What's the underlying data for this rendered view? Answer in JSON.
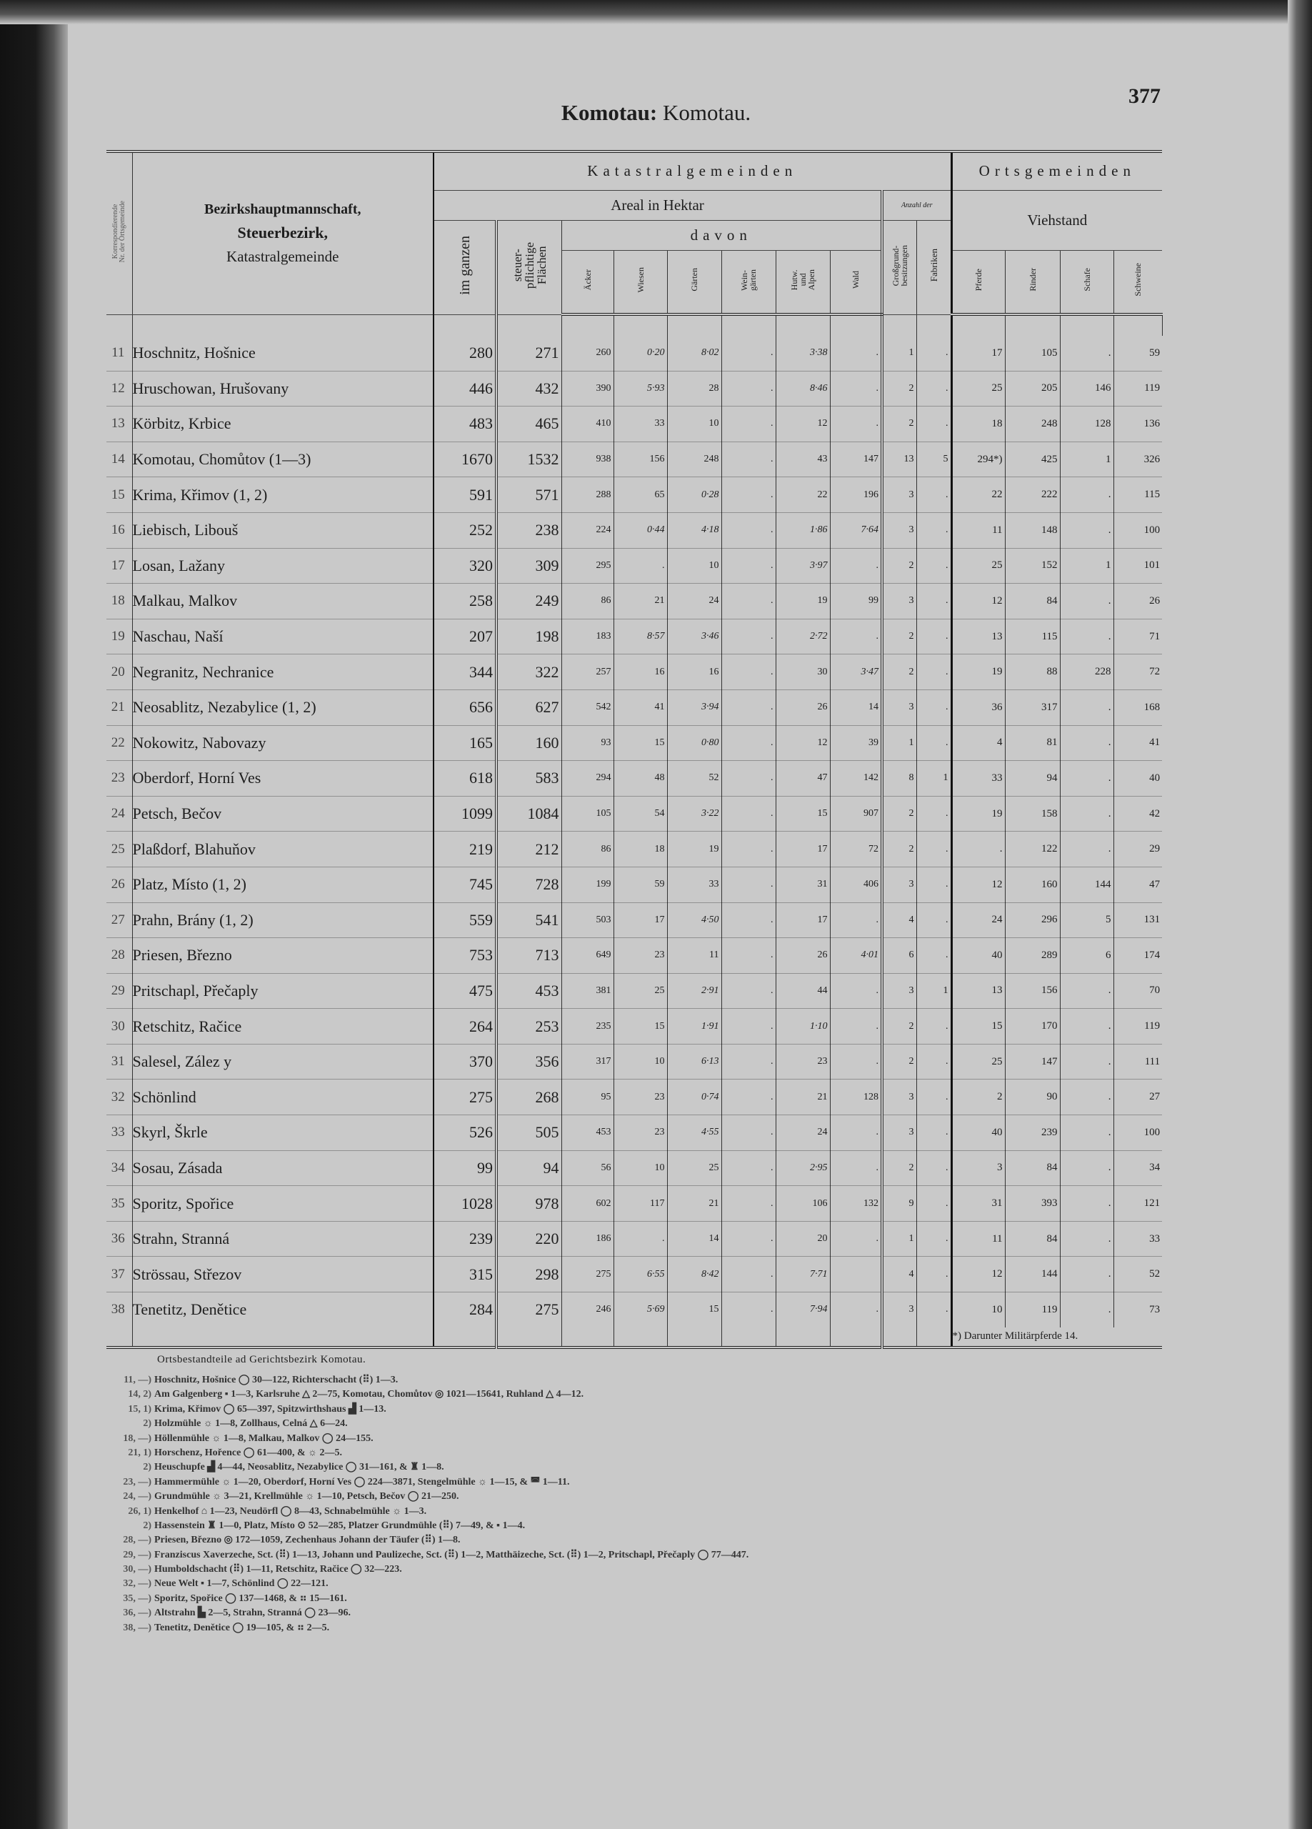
{
  "page": {
    "title_bold": "Komotau:",
    "title_rest": "Komotau.",
    "number": "377"
  },
  "header": {
    "nr": "Korrespondierende\nNr. der Ortsgemeinde",
    "name_line1": "Bezirkshauptmannschaft,",
    "name_line2": "Steuerbezirk,",
    "name_line3": "Katastralgemeinde",
    "katastral": "Katastralgemeinden",
    "orts": "Ortsgemeinden",
    "areal": "Areal in Hektar",
    "anzahl": "Anzahl der",
    "viehstand": "Viehstand",
    "im_ganzen": "im ganzen",
    "steuer": "steuer-\npflichtige\nFlächen",
    "davon": "davon",
    "grossgrund": "Großgrund-\nbesitzungen",
    "fabriken": "Fabriken",
    "cols": [
      "Äcker",
      "Wiesen",
      "Gärten",
      "Wein-\ngärten",
      "Hutw.\nund\nAlpen",
      "Wald"
    ],
    "vieh": [
      "Pferde",
      "Rinder",
      "Schafe",
      "Schweine"
    ]
  },
  "rows": [
    [
      "11",
      "Hoschnitz, Hošnice",
      "280",
      "271",
      "260",
      "0·20",
      "8·02",
      ".",
      "3·38",
      ".",
      "1",
      ".",
      "17",
      "105",
      ".",
      "59"
    ],
    [
      "12",
      "Hruschowan, Hrušovany",
      "446",
      "432",
      "390",
      "5·93",
      "28",
      ".",
      "8·46",
      ".",
      "2",
      ".",
      "25",
      "205",
      "146",
      "119"
    ],
    [
      "13",
      "Körbitz, Krbice",
      "483",
      "465",
      "410",
      "33",
      "10",
      ".",
      "12",
      ".",
      "2",
      ".",
      "18",
      "248",
      "128",
      "136"
    ],
    [
      "14",
      "Komotau, Chomůtov (1—3)",
      "1670",
      "1532",
      "938",
      "156",
      "248",
      ".",
      "43",
      "147",
      "13",
      "5",
      "294*)",
      "425",
      "1",
      "326"
    ],
    [
      "15",
      "Krima, Křimov (1, 2)",
      "591",
      "571",
      "288",
      "65",
      "0·28",
      ".",
      "22",
      "196",
      "3",
      ".",
      "22",
      "222",
      ".",
      "115"
    ],
    [
      "16",
      "Liebisch, Libouš",
      "252",
      "238",
      "224",
      "0·44",
      "4·18",
      ".",
      "1·86",
      "7·64",
      "3",
      ".",
      "11",
      "148",
      ".",
      "100"
    ],
    [
      "17",
      "Losan, Lažany",
      "320",
      "309",
      "295",
      ".",
      "10",
      ".",
      "3·97",
      ".",
      "2",
      ".",
      "25",
      "152",
      "1",
      "101"
    ],
    [
      "18",
      "Malkau, Malkov",
      "258",
      "249",
      "86",
      "21",
      "24",
      ".",
      "19",
      "99",
      "3",
      ".",
      "12",
      "84",
      ".",
      "26"
    ],
    [
      "19",
      "Naschau, Naší",
      "207",
      "198",
      "183",
      "8·57",
      "3·46",
      ".",
      "2·72",
      ".",
      "2",
      ".",
      "13",
      "115",
      ".",
      "71"
    ],
    [
      "20",
      "Negranitz, Nechranice",
      "344",
      "322",
      "257",
      "16",
      "16",
      ".",
      "30",
      "3·47",
      "2",
      ".",
      "19",
      "88",
      "228",
      "72"
    ],
    [
      "21",
      "Neosablitz, Nezabylice (1, 2)",
      "656",
      "627",
      "542",
      "41",
      "3·94",
      ".",
      "26",
      "14",
      "3",
      ".",
      "36",
      "317",
      ".",
      "168"
    ],
    [
      "22",
      "Nokowitz, Nabovazy",
      "165",
      "160",
      "93",
      "15",
      "0·80",
      ".",
      "12",
      "39",
      "1",
      ".",
      "4",
      "81",
      ".",
      "41"
    ],
    [
      "23",
      "Oberdorf, Horní Ves",
      "618",
      "583",
      "294",
      "48",
      "52",
      ".",
      "47",
      "142",
      "8",
      "1",
      "33",
      "94",
      ".",
      "40"
    ],
    [
      "24",
      "Petsch, Bečov",
      "1099",
      "1084",
      "105",
      "54",
      "3·22",
      ".",
      "15",
      "907",
      "2",
      ".",
      "19",
      "158",
      ".",
      "42"
    ],
    [
      "25",
      "Plaßdorf, Blahuňov",
      "219",
      "212",
      "86",
      "18",
      "19",
      ".",
      "17",
      "72",
      "2",
      ".",
      ".",
      "122",
      ".",
      "29"
    ],
    [
      "26",
      "Platz, Místo (1, 2)",
      "745",
      "728",
      "199",
      "59",
      "33",
      ".",
      "31",
      "406",
      "3",
      ".",
      "12",
      "160",
      "144",
      "47"
    ],
    [
      "27",
      "Prahn, Brány (1, 2)",
      "559",
      "541",
      "503",
      "17",
      "4·50",
      ".",
      "17",
      ".",
      "4",
      ".",
      "24",
      "296",
      "5",
      "131"
    ],
    [
      "28",
      "Priesen, Březno",
      "753",
      "713",
      "649",
      "23",
      "11",
      ".",
      "26",
      "4·01",
      "6",
      ".",
      "40",
      "289",
      "6",
      "174"
    ],
    [
      "29",
      "Pritschapl, Přečaply",
      "475",
      "453",
      "381",
      "25",
      "2·91",
      ".",
      "44",
      ".",
      "3",
      "1",
      "13",
      "156",
      ".",
      "70"
    ],
    [
      "30",
      "Retschitz, Račice",
      "264",
      "253",
      "235",
      "15",
      "1·91",
      ".",
      "1·10",
      ".",
      "2",
      ".",
      "15",
      "170",
      ".",
      "119"
    ],
    [
      "31",
      "Salesel, Zález y",
      "370",
      "356",
      "317",
      "10",
      "6·13",
      ".",
      "23",
      ".",
      "2",
      ".",
      "25",
      "147",
      ".",
      "111"
    ],
    [
      "32",
      "Schönlind",
      "275",
      "268",
      "95",
      "23",
      "0·74",
      ".",
      "21",
      "128",
      "3",
      ".",
      "2",
      "90",
      ".",
      "27"
    ],
    [
      "33",
      "Skyrl, Škrle",
      "526",
      "505",
      "453",
      "23",
      "4·55",
      ".",
      "24",
      ".",
      "3",
      ".",
      "40",
      "239",
      ".",
      "100"
    ],
    [
      "34",
      "Sosau, Zásada",
      "99",
      "94",
      "56",
      "10",
      "25",
      ".",
      "2·95",
      ".",
      "2",
      ".",
      "3",
      "84",
      ".",
      "34"
    ],
    [
      "35",
      "Sporitz, Spořice",
      "1028",
      "978",
      "602",
      "117",
      "21",
      ".",
      "106",
      "132",
      "9",
      ".",
      "31",
      "393",
      ".",
      "121"
    ],
    [
      "36",
      "Strahn, Stranná",
      "239",
      "220",
      "186",
      ".",
      "14",
      ".",
      "20",
      ".",
      "1",
      ".",
      "11",
      "84",
      ".",
      "33"
    ],
    [
      "37",
      "Strössau, Střezov",
      "315",
      "298",
      "275",
      "6·55",
      "8·42",
      ".",
      "7·71",
      "",
      "4",
      ".",
      "12",
      "144",
      ".",
      "52"
    ],
    [
      "38",
      "Tenetitz, Denětice",
      "284",
      "275",
      "246",
      "5·69",
      "15",
      ".",
      "7·94",
      ".",
      "3",
      ".",
      "10",
      "119",
      ".",
      "73"
    ]
  ],
  "table_footnote": "*) Darunter Militärpferde 14.",
  "notes": {
    "title": "Ortsbestandteile ad Gerichtsbezirk Komotau.",
    "lines": [
      {
        "ref": "11, —)",
        "text": "Hoschnitz, Hošnice ◯ 30—122, Richterschacht (⠿) 1—3."
      },
      {
        "ref": "14, 2)",
        "text": "Am Galgenberg ▪ 1—3, Karlsruhe △ 2—75, Komotau, Chomůtov ◎ 1021—15641, Ruhland △ 4—12."
      },
      {
        "ref": "15, 1)",
        "text": "Krima, Křimov ◯ 65—397, Spitzwirthshaus ▟ 1—13."
      },
      {
        "ref": "2)",
        "text": "Holzmühle ☼ 1—8, Zollhaus, Celná △ 6—24."
      },
      {
        "ref": "18, —)",
        "text": "Höllenmühle ☼ 1—8, Malkau, Malkov ◯ 24—155."
      },
      {
        "ref": "21, 1)",
        "text": "Horschenz, Hořence ◯ 61—400, & ☼ 2—5."
      },
      {
        "ref": "2)",
        "text": "Heuschupfe ▟ 4—44, Neosablitz, Nezabylice ◯ 31—161, & ♜ 1—8."
      },
      {
        "ref": "23, —)",
        "text": "Hammermühle ☼ 1—20, Oberdorf, Horní Ves ◯ 224—3871, Stengelmühle ☼ 1—15, & ◚ 1—11."
      },
      {
        "ref": "24, —)",
        "text": "Grundmühle ☼ 3—21, Krellmühle ☼ 1—10, Petsch, Bečov ◯ 21—250."
      },
      {
        "ref": "26, 1)",
        "text": "Henkelhof ⌂ 1—23, Neudörfl ◯ 8—43, Schnabelmühle ☼ 1—3."
      },
      {
        "ref": "2)",
        "text": "Hassenstein ♜ 1—0, Platz, Místo ⊙ 52—285, Platzer Grundmühle (⠿) 7—49, & ▪ 1—4."
      },
      {
        "ref": "28, —)",
        "text": "Priesen, Březno ◎ 172—1059, Zechenhaus Johann der Täufer (⠿) 1—8."
      },
      {
        "ref": "29, —)",
        "text": "Franziscus Xaverzeche, Sct. (⠿) 1—13, Johann und Paulizeche, Sct. (⠿) 1—2, Matthäizeche, Sct. (⠿) 1—2, Pritschapl, Přečaply ◯ 77—447."
      },
      {
        "ref": "30, —)",
        "text": "Humboldschacht (⠿) 1—11, Retschitz, Račice ◯ 32—223."
      },
      {
        "ref": "32, —)",
        "text": "Neue Welt ▪ 1—7, Schönlind ◯ 22—121."
      },
      {
        "ref": "35, —)",
        "text": "Sporitz, Spořice ◯ 137—1468, & ⠶ 15—161."
      },
      {
        "ref": "36, —)",
        "text": "Altstrahn ▙ 2—5, Strahn, Stranná ◯ 23—96."
      },
      {
        "ref": "38, —)",
        "text": "Tenetitz, Denětice ◯ 19—105, & ⠶ 2—5."
      }
    ]
  }
}
